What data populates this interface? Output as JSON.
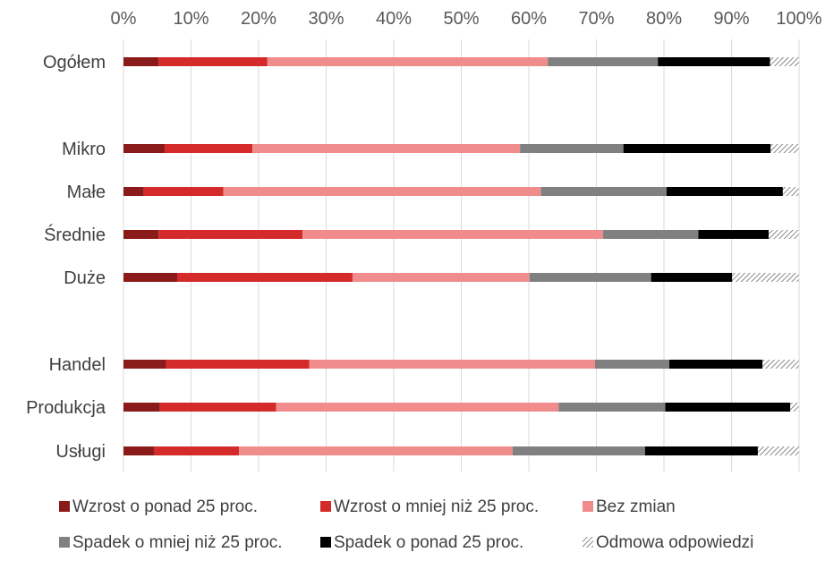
{
  "chart_data": {
    "type": "bar",
    "stacked": true,
    "orientation": "horizontal",
    "percent_stacked": true,
    "x_ticks": [
      "0%",
      "10%",
      "20%",
      "30%",
      "40%",
      "50%",
      "60%",
      "70%",
      "80%",
      "90%",
      "100%"
    ],
    "xlim": [
      0,
      100
    ],
    "grid": true,
    "legend_position": "bottom",
    "categories": [
      "Ogółem",
      "Mikro",
      "Małe",
      "Średnie",
      "Duże",
      "Handel",
      "Produkcja",
      "Usługi"
    ],
    "group_breaks_after": [
      0,
      4
    ],
    "series": [
      {
        "name": "Wzrost o ponad 25 proc.",
        "color": "#8b1a1a",
        "values": [
          5.2,
          6.1,
          3.0,
          5.2,
          8.0,
          6.3,
          5.4,
          4.5
        ]
      },
      {
        "name": "Wzrost o mniej niż 25 proc.",
        "color": "#d42a2a",
        "values": [
          16.1,
          13.0,
          11.8,
          21.3,
          25.9,
          21.2,
          17.2,
          12.6
        ]
      },
      {
        "name": "Bez zmian",
        "color": "#f08c8c",
        "values": [
          41.5,
          39.6,
          47.0,
          44.5,
          26.2,
          42.3,
          41.8,
          40.5
        ]
      },
      {
        "name": "Spadek o mniej niż 25 proc.",
        "color": "#808080",
        "values": [
          16.3,
          15.3,
          18.6,
          14.1,
          18.0,
          11.0,
          15.8,
          19.6
        ]
      },
      {
        "name": "Spadek o ponad 25 proc.",
        "color": "#000000",
        "values": [
          16.6,
          21.8,
          17.2,
          10.4,
          12.0,
          13.8,
          18.5,
          16.7
        ]
      },
      {
        "name": "Odmowa odpowiedzi",
        "color": "#ffffff",
        "pattern": "diagonal-hatch",
        "values": [
          4.3,
          4.2,
          2.4,
          4.5,
          9.9,
          5.4,
          1.3,
          6.1
        ]
      }
    ]
  }
}
